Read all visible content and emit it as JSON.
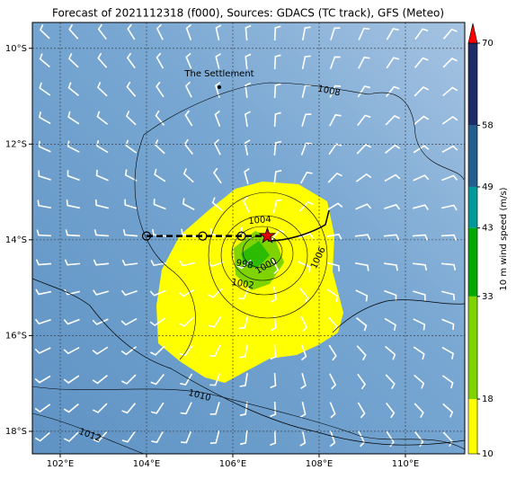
{
  "title": "Forecast of 2021112318 (f000), Sources: GDACS (TC track), GFS (Meteo)",
  "map": {
    "xlim": [
      101.354,
      111.375
    ],
    "ylim": [
      -18.47,
      -9.46
    ],
    "xticks": [
      {
        "value": 102,
        "label": "102°E"
      },
      {
        "value": 104,
        "label": "104°E"
      },
      {
        "value": 106,
        "label": "106°E"
      },
      {
        "value": 108,
        "label": "108°E"
      },
      {
        "value": 110,
        "label": "110°E"
      }
    ],
    "yticks": [
      {
        "value": -10,
        "label": "10°S"
      },
      {
        "value": -12,
        "label": "12°S"
      },
      {
        "value": -14,
        "label": "14°S"
      },
      {
        "value": -16,
        "label": "16°S"
      },
      {
        "value": -18,
        "label": "18°S"
      }
    ],
    "grid": true
  },
  "place": "The Settlement",
  "contour_labels": [
    "1008",
    "1004",
    "1000",
    "998",
    "1002",
    "1006",
    "1010",
    "1012"
  ],
  "track": {
    "lon": [
      104.0,
      105.3,
      106.2,
      106.8
    ],
    "lat": [
      -13.92,
      -13.92,
      -13.92,
      -13.92
    ]
  },
  "colorbar": {
    "label": "10 m wind speed (m/s)",
    "ticks": [
      10,
      18,
      33,
      43,
      49,
      58,
      70
    ],
    "colors": [
      "#ffff00",
      "#7fd400",
      "#00a800",
      "#009a9a",
      "#235e8e",
      "#1d2b66"
    ],
    "extend_color": "#ff0000"
  }
}
